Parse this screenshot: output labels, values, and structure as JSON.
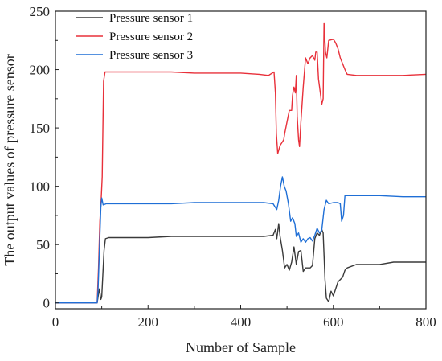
{
  "chart_data": {
    "type": "line",
    "title": "",
    "xlabel": "Number of Sample",
    "ylabel": "The output values of  pressure sensor",
    "xlim": [
      0,
      800
    ],
    "ylim": [
      -5,
      250
    ],
    "xticks": [
      0,
      200,
      400,
      600,
      800
    ],
    "yticks": [
      0,
      50,
      100,
      150,
      200,
      250
    ],
    "grid": false,
    "legend_position": "top-left",
    "series": [
      {
        "name": "Pressure sensor 1",
        "color": "#3a3a3a",
        "points": [
          [
            0,
            0
          ],
          [
            85,
            0
          ],
          [
            90,
            0
          ],
          [
            92,
            5
          ],
          [
            95,
            12
          ],
          [
            98,
            3
          ],
          [
            100,
            5
          ],
          [
            105,
            45
          ],
          [
            108,
            55
          ],
          [
            115,
            56
          ],
          [
            150,
            56
          ],
          [
            200,
            56
          ],
          [
            250,
            57
          ],
          [
            300,
            57
          ],
          [
            350,
            57
          ],
          [
            400,
            57
          ],
          [
            450,
            57
          ],
          [
            470,
            58
          ],
          [
            475,
            63
          ],
          [
            478,
            55
          ],
          [
            482,
            68
          ],
          [
            485,
            57
          ],
          [
            490,
            45
          ],
          [
            495,
            30
          ],
          [
            500,
            33
          ],
          [
            505,
            28
          ],
          [
            510,
            35
          ],
          [
            515,
            48
          ],
          [
            520,
            33
          ],
          [
            525,
            44
          ],
          [
            530,
            45
          ],
          [
            535,
            27
          ],
          [
            540,
            30
          ],
          [
            550,
            30
          ],
          [
            555,
            32
          ],
          [
            560,
            55
          ],
          [
            565,
            60
          ],
          [
            570,
            58
          ],
          [
            575,
            63
          ],
          [
            578,
            60
          ],
          [
            582,
            20
          ],
          [
            585,
            4
          ],
          [
            590,
            1
          ],
          [
            595,
            10
          ],
          [
            600,
            6
          ],
          [
            610,
            18
          ],
          [
            620,
            22
          ],
          [
            625,
            28
          ],
          [
            630,
            30
          ],
          [
            650,
            33
          ],
          [
            680,
            33
          ],
          [
            700,
            33
          ],
          [
            730,
            35
          ],
          [
            760,
            35
          ],
          [
            790,
            35
          ],
          [
            800,
            35
          ]
        ]
      },
      {
        "name": "Pressure sensor 2",
        "color": "#e8303a",
        "points": [
          [
            0,
            0
          ],
          [
            85,
            0
          ],
          [
            90,
            0
          ],
          [
            93,
            30
          ],
          [
            96,
            70
          ],
          [
            99,
            90
          ],
          [
            101,
            108
          ],
          [
            104,
            190
          ],
          [
            107,
            198
          ],
          [
            120,
            198
          ],
          [
            200,
            198
          ],
          [
            250,
            198
          ],
          [
            300,
            197
          ],
          [
            350,
            197
          ],
          [
            400,
            197
          ],
          [
            440,
            196
          ],
          [
            460,
            195
          ],
          [
            468,
            197
          ],
          [
            472,
            198
          ],
          [
            475,
            180
          ],
          [
            477,
            145
          ],
          [
            480,
            128
          ],
          [
            485,
            135
          ],
          [
            490,
            138
          ],
          [
            493,
            140
          ],
          [
            495,
            145
          ],
          [
            500,
            155
          ],
          [
            505,
            165
          ],
          [
            510,
            165
          ],
          [
            512,
            178
          ],
          [
            515,
            185
          ],
          [
            518,
            180
          ],
          [
            520,
            195
          ],
          [
            522,
            160
          ],
          [
            525,
            140
          ],
          [
            527,
            134
          ],
          [
            530,
            155
          ],
          [
            535,
            185
          ],
          [
            540,
            210
          ],
          [
            545,
            205
          ],
          [
            550,
            210
          ],
          [
            555,
            212
          ],
          [
            560,
            208
          ],
          [
            562,
            215
          ],
          [
            565,
            215
          ],
          [
            568,
            192
          ],
          [
            572,
            180
          ],
          [
            575,
            170
          ],
          [
            578,
            175
          ],
          [
            580,
            240
          ],
          [
            583,
            215
          ],
          [
            586,
            210
          ],
          [
            590,
            225
          ],
          [
            600,
            226
          ],
          [
            605,
            223
          ],
          [
            610,
            218
          ],
          [
            615,
            210
          ],
          [
            620,
            205
          ],
          [
            625,
            200
          ],
          [
            630,
            196
          ],
          [
            650,
            195
          ],
          [
            700,
            195
          ],
          [
            750,
            195
          ],
          [
            800,
            196
          ]
        ]
      },
      {
        "name": "Pressure sensor 3",
        "color": "#1f6fd6",
        "points": [
          [
            0,
            0
          ],
          [
            85,
            0
          ],
          [
            90,
            0
          ],
          [
            92,
            10
          ],
          [
            95,
            45
          ],
          [
            98,
            82
          ],
          [
            100,
            90
          ],
          [
            103,
            84
          ],
          [
            110,
            85
          ],
          [
            150,
            85
          ],
          [
            200,
            85
          ],
          [
            250,
            85
          ],
          [
            300,
            86
          ],
          [
            350,
            86
          ],
          [
            400,
            86
          ],
          [
            450,
            86
          ],
          [
            470,
            85
          ],
          [
            478,
            80
          ],
          [
            482,
            88
          ],
          [
            486,
            100
          ],
          [
            490,
            108
          ],
          [
            494,
            100
          ],
          [
            498,
            96
          ],
          [
            503,
            85
          ],
          [
            508,
            70
          ],
          [
            512,
            73
          ],
          [
            517,
            68
          ],
          [
            520,
            57
          ],
          [
            525,
            60
          ],
          [
            530,
            52
          ],
          [
            535,
            55
          ],
          [
            540,
            52
          ],
          [
            545,
            55
          ],
          [
            550,
            56
          ],
          [
            555,
            53
          ],
          [
            560,
            58
          ],
          [
            565,
            64
          ],
          [
            570,
            60
          ],
          [
            575,
            62
          ],
          [
            580,
            80
          ],
          [
            585,
            88
          ],
          [
            590,
            85
          ],
          [
            600,
            86
          ],
          [
            610,
            86
          ],
          [
            615,
            85
          ],
          [
            618,
            70
          ],
          [
            622,
            75
          ],
          [
            625,
            92
          ],
          [
            630,
            92
          ],
          [
            650,
            92
          ],
          [
            700,
            92
          ],
          [
            750,
            91
          ],
          [
            800,
            91
          ]
        ]
      }
    ]
  }
}
